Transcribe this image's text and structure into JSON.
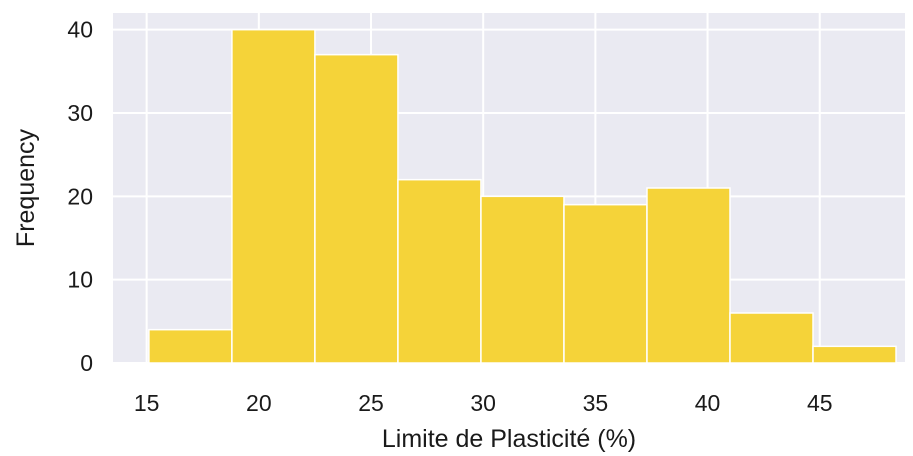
{
  "chart_data": {
    "type": "bar",
    "subtype": "histogram",
    "xlabel": "Limite de Plasticité (%)",
    "ylabel": "Frequency",
    "xlim": [
      13.5,
      48.8
    ],
    "ylim": [
      0,
      42
    ],
    "x_ticks": [
      15,
      20,
      25,
      30,
      35,
      40,
      45
    ],
    "y_ticks": [
      0,
      10,
      20,
      30,
      40
    ],
    "bin_edges": [
      15.1,
      18.8,
      22.5,
      26.2,
      29.9,
      33.6,
      37.3,
      41.0,
      44.7,
      48.4
    ],
    "values": [
      4,
      40,
      37,
      22,
      20,
      19,
      21,
      6,
      2
    ],
    "grid": true,
    "legend": "none",
    "colors": {
      "bar": "#f5d339",
      "bar_edge": "#ffffff",
      "plot_background": "#eaeaf2",
      "grid": "#ffffff"
    }
  }
}
